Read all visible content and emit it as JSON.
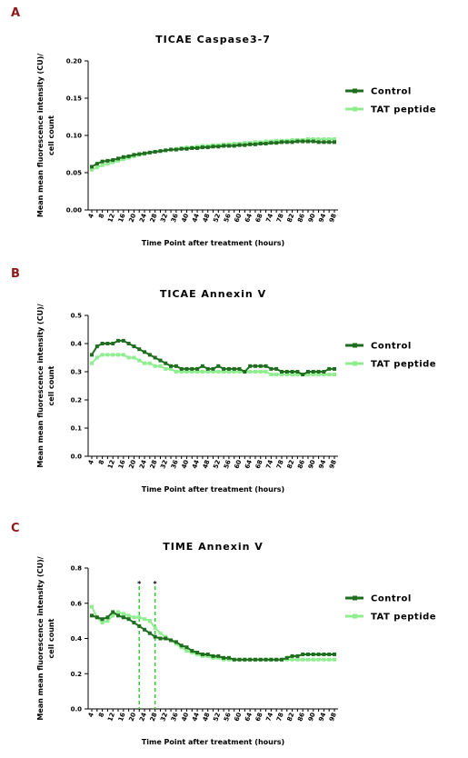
{
  "chart_data": [
    {
      "type": "line",
      "panel": "A",
      "title": "TICAE Caspase3-7",
      "x_label": "Time Point after treatment (hours)",
      "y_label": [
        "Mean mean fluorescence intensity (CU)/",
        "cell count"
      ],
      "categories": [
        "4",
        null,
        "8",
        null,
        "12",
        null,
        "16",
        null,
        "20",
        null,
        "24",
        null,
        "28",
        null,
        "32",
        null,
        "36",
        null,
        "40",
        null,
        "44",
        null,
        "48",
        null,
        "52",
        null,
        "56",
        null,
        "60",
        null,
        "64",
        null,
        "68",
        null,
        "74",
        null,
        "78",
        null,
        "82",
        null,
        "86",
        null,
        "90",
        null,
        "94",
        null,
        "98"
      ],
      "ylim": [
        0,
        0.2
      ],
      "yticks": [
        {
          "value": 0,
          "label": "0.00"
        },
        0.05,
        {
          "value": 0.1,
          "label": "0.10"
        },
        0.15,
        {
          "value": 0.2,
          "label": "0.20"
        }
      ],
      "series": [
        {
          "name": "Control",
          "color": "#1f6e1f",
          "values": [
            0.058,
            0.062,
            0.065,
            0.066,
            0.067,
            0.069,
            0.071,
            0.072,
            0.074,
            0.075,
            0.076,
            0.077,
            0.078,
            0.079,
            0.08,
            0.081,
            0.081,
            0.082,
            0.082,
            0.083,
            0.083,
            0.084,
            0.084,
            0.085,
            0.085,
            0.086,
            0.086,
            0.086,
            0.087,
            0.087,
            0.088,
            0.088,
            0.089,
            0.089,
            0.09,
            0.09,
            0.091,
            0.091,
            0.091,
            0.092,
            0.092,
            0.092,
            0.092,
            0.091,
            0.091,
            0.091,
            0.091
          ]
        },
        {
          "name": "TAT peptide",
          "color": "#90ee90",
          "values": [
            0.054,
            0.057,
            0.06,
            0.062,
            0.064,
            0.066,
            0.068,
            0.07,
            0.072,
            0.074,
            0.075,
            0.077,
            0.078,
            0.079,
            0.08,
            0.081,
            0.082,
            0.083,
            0.084,
            0.084,
            0.085,
            0.086,
            0.086,
            0.087,
            0.087,
            0.088,
            0.088,
            0.089,
            0.089,
            0.09,
            0.09,
            0.091,
            0.091,
            0.092,
            0.092,
            0.093,
            0.093,
            0.093,
            0.094,
            0.094,
            0.094,
            0.095,
            0.095,
            0.095,
            0.095,
            0.095,
            0.095
          ]
        }
      ]
    },
    {
      "type": "line",
      "panel": "B",
      "title": "TICAE Annexin V",
      "x_label": "Time Point after treatment (hours)",
      "y_label": [
        "Mean mean fluorescence intensity (CU)/",
        "cell count"
      ],
      "categories": [
        "4",
        null,
        "8",
        null,
        "12",
        null,
        "16",
        null,
        "20",
        null,
        "24",
        null,
        "28",
        null,
        "32",
        null,
        "36",
        null,
        "40",
        null,
        "44",
        null,
        "48",
        null,
        "52",
        null,
        "56",
        null,
        "60",
        null,
        "64",
        null,
        "68",
        null,
        "74",
        null,
        "78",
        null,
        "82",
        null,
        "86",
        null,
        "90",
        null,
        "94",
        null,
        "98"
      ],
      "ylim": [
        0,
        0.5
      ],
      "yticks": [
        {
          "value": 0,
          "label": "0.0"
        },
        0.1,
        0.2,
        0.3,
        0.4,
        0.5
      ],
      "series": [
        {
          "name": "Control",
          "color": "#1f6e1f",
          "values": [
            0.36,
            0.39,
            0.4,
            0.4,
            0.4,
            0.41,
            0.41,
            0.4,
            0.39,
            0.38,
            0.37,
            0.36,
            0.35,
            0.34,
            0.33,
            0.32,
            0.32,
            0.31,
            0.31,
            0.31,
            0.31,
            0.32,
            0.31,
            0.31,
            0.32,
            0.31,
            0.31,
            0.31,
            0.31,
            0.3,
            0.32,
            0.32,
            0.32,
            0.32,
            0.31,
            0.31,
            0.3,
            0.3,
            0.3,
            0.3,
            0.29,
            0.3,
            0.3,
            0.3,
            0.3,
            0.31,
            0.31
          ]
        },
        {
          "name": "TAT peptide",
          "color": "#90ee90",
          "values": [
            0.33,
            0.35,
            0.36,
            0.36,
            0.36,
            0.36,
            0.36,
            0.35,
            0.35,
            0.34,
            0.33,
            0.33,
            0.32,
            0.32,
            0.31,
            0.31,
            0.3,
            0.3,
            0.3,
            0.3,
            0.3,
            0.3,
            0.3,
            0.3,
            0.3,
            0.3,
            0.3,
            0.3,
            0.3,
            0.3,
            0.3,
            0.3,
            0.3,
            0.3,
            0.29,
            0.29,
            0.29,
            0.29,
            0.29,
            0.29,
            0.29,
            0.29,
            0.29,
            0.29,
            0.29,
            0.29,
            0.29
          ]
        }
      ]
    },
    {
      "type": "line",
      "panel": "C",
      "title": "TIME Annexin V",
      "x_label": "Time Point after treatment (hours)",
      "y_label": [
        "Mean mean fluorescence intensity (CU)/",
        "cell count"
      ],
      "categories": [
        "4",
        null,
        "8",
        null,
        "12",
        null,
        "16",
        null,
        "20",
        null,
        "24",
        null,
        "28",
        null,
        "32",
        null,
        "36",
        null,
        "40",
        null,
        "44",
        null,
        "48",
        null,
        "52",
        null,
        "56",
        null,
        "60",
        null,
        "64",
        null,
        "68",
        null,
        "74",
        null,
        "78",
        null,
        "82",
        null,
        "86",
        null,
        "90",
        null,
        "94",
        null,
        "98"
      ],
      "ylim": [
        0,
        0.8
      ],
      "yticks": [
        {
          "value": 0,
          "label": "0.0"
        },
        0.2,
        0.4,
        0.6,
        0.8
      ],
      "annotations": [
        {
          "text": "*",
          "category": 9
        },
        {
          "text": "*",
          "category": 12
        }
      ],
      "series": [
        {
          "name": "Control",
          "color": "#1f6e1f",
          "values": [
            0.53,
            0.52,
            0.51,
            0.52,
            0.55,
            0.53,
            0.52,
            0.51,
            0.49,
            0.47,
            0.45,
            0.43,
            0.41,
            0.4,
            0.4,
            0.39,
            0.38,
            0.36,
            0.35,
            0.33,
            0.32,
            0.31,
            0.31,
            0.3,
            0.3,
            0.29,
            0.29,
            0.28,
            0.28,
            0.28,
            0.28,
            0.28,
            0.28,
            0.28,
            0.28,
            0.28,
            0.28,
            0.29,
            0.3,
            0.3,
            0.31,
            0.31,
            0.31,
            0.31,
            0.31,
            0.31,
            0.31
          ]
        },
        {
          "name": "TAT peptide",
          "color": "#90ee90",
          "values": [
            0.58,
            0.52,
            0.49,
            0.5,
            0.53,
            0.55,
            0.54,
            0.53,
            0.52,
            0.52,
            0.51,
            0.5,
            0.46,
            0.43,
            0.41,
            0.39,
            0.37,
            0.35,
            0.33,
            0.32,
            0.31,
            0.3,
            0.3,
            0.29,
            0.29,
            0.28,
            0.28,
            0.28,
            0.28,
            0.28,
            0.28,
            0.28,
            0.28,
            0.28,
            0.28,
            0.28,
            0.28,
            0.28,
            0.28,
            0.28,
            0.28,
            0.28,
            0.28,
            0.28,
            0.28,
            0.28,
            0.28
          ]
        }
      ]
    }
  ]
}
